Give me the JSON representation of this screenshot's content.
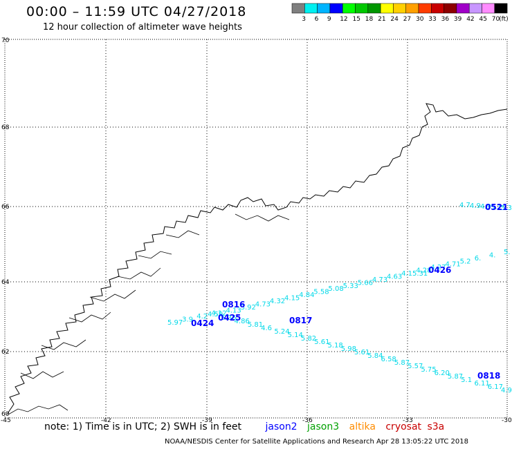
{
  "header": {
    "title": "00:00 – 11:59 UTC 04/27/2018",
    "subtitle": "12 hour collection of altimeter wave heights"
  },
  "legend": {
    "colors": [
      "#7f7f7f",
      "#00f0f0",
      "#00b4ff",
      "#0000ff",
      "#00ff00",
      "#00c800",
      "#009600",
      "#ffff00",
      "#ffd000",
      "#ffa000",
      "#ff3c00",
      "#c80000",
      "#8c0000",
      "#a000c8",
      "#c896ff",
      "#ff8cff",
      "#000000"
    ],
    "labels": [
      "3",
      "6",
      "9",
      "12",
      "15",
      "18",
      "21",
      "24",
      "27",
      "30",
      "33",
      "36",
      "39",
      "42",
      "45",
      "70"
    ],
    "unit": "(ft)"
  },
  "axes": {
    "lon_labels": [
      "-45",
      "-42",
      "-39",
      "-36",
      "-33",
      "-30"
    ],
    "lat_labels": [
      "70",
      "68",
      "66",
      "64",
      "62",
      "60"
    ]
  },
  "pass_labels": [
    {
      "text": "0521",
      "color": "#0000ff"
    },
    {
      "text": "0426",
      "color": "#0000ff"
    },
    {
      "text": "0816",
      "color": "#0000ff"
    },
    {
      "text": "0425",
      "color": "#0000ff"
    },
    {
      "text": "0424",
      "color": "#0000ff"
    },
    {
      "text": "0817",
      "color": "#0000ff"
    },
    {
      "text": "0818",
      "color": "#0000ff"
    }
  ],
  "wave_heights": {
    "track_upper": [
      "5.97",
      "3.9",
      "4.2",
      "4.12",
      "4.13",
      "3.92",
      "4.73",
      "4.32",
      "4.15",
      "4.84",
      "5.58",
      "5.08",
      "5.33",
      "5.66",
      "4.73",
      "4.63",
      "4.15.31",
      "4.28",
      "4.27",
      "4.71",
      "5.2",
      "6.",
      "4.",
      "5."
    ],
    "track_lower": [
      "4.59",
      "5.36",
      "4.86",
      "5.81",
      "4.6",
      "5.24",
      "5.14",
      "5.82",
      "5.61",
      "5.18",
      "5.98",
      "5.61",
      "5.84",
      "6.58",
      "5.87",
      "5.57",
      "5.75",
      "6.20",
      "5.87",
      "5.1",
      "6.11",
      "6.17",
      "4.9"
    ],
    "track_top": [
      "4.7",
      "4.9",
      "4.9",
      "5.1",
      "5.3"
    ]
  },
  "footer": {
    "note": "note: 1) Time is in UTC; 2) SWH is in feet",
    "satellites": [
      {
        "name": "jason2",
        "color": "#0000ff"
      },
      {
        "name": "jason3",
        "color": "#00a000"
      },
      {
        "name": "altika",
        "color": "#ff8c00"
      },
      {
        "name": "cryosat",
        "color": "#c80000"
      },
      {
        "name": "s3a",
        "color": "#c80000"
      }
    ],
    "credit": "NOAA/NESDIS Center for Satellite Applications and Research    Apr 28 13:05:22 UTC 2018"
  }
}
